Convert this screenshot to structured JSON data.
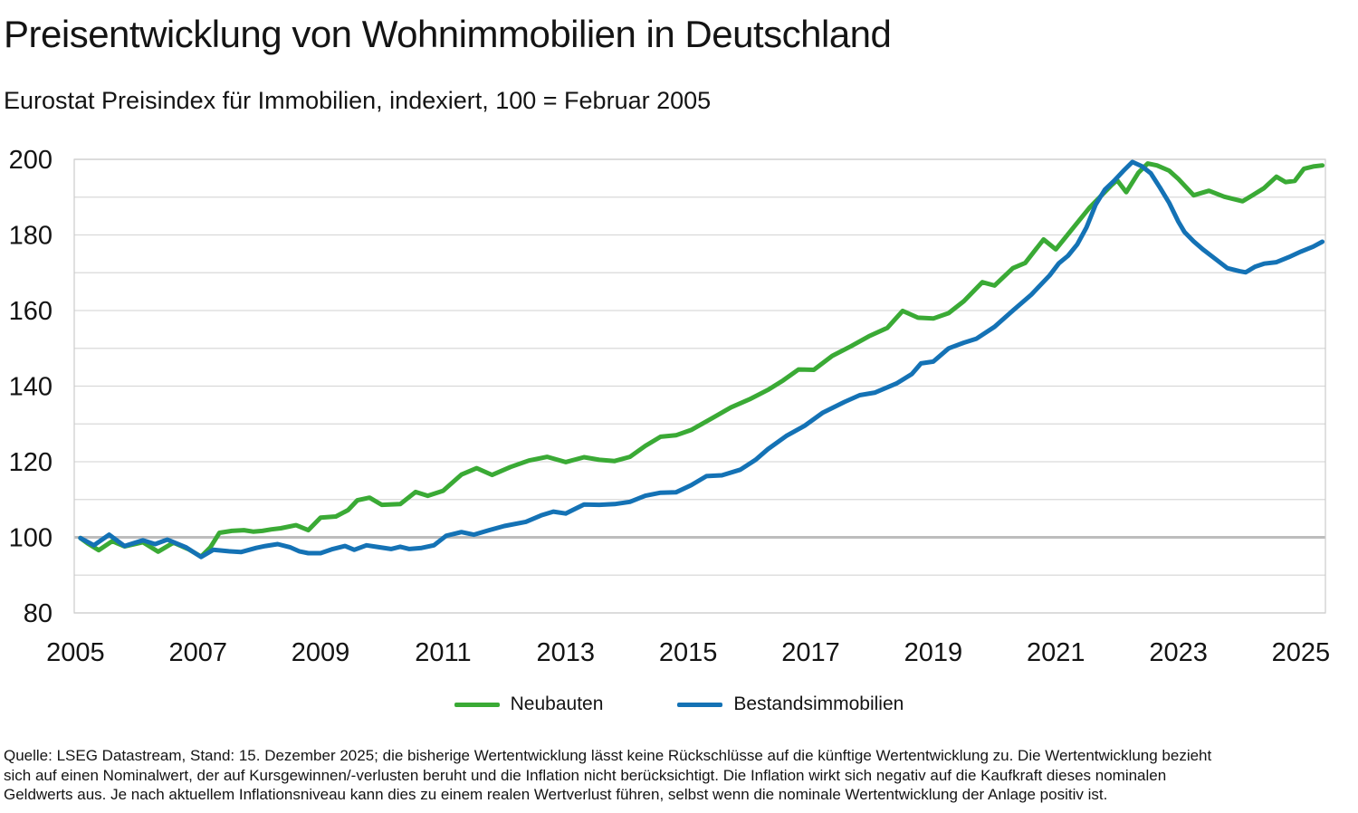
{
  "chart_data": {
    "type": "line",
    "title": "Preisentwicklung von Wohnimmobilien in Deutschland",
    "subtitle": "Eurostat Preisindex für Immobilien, indexiert, 100 = Februar 2005",
    "ylim": [
      80,
      200
    ],
    "yticks": [
      80,
      100,
      120,
      140,
      160,
      180,
      200
    ],
    "grid_step": 10,
    "baseline_value": 100,
    "xlim": [
      2004.98,
      2025.4
    ],
    "xticks": [
      2005,
      2007,
      2009,
      2011,
      2013,
      2015,
      2017,
      2019,
      2021,
      2023,
      2025
    ],
    "grid_color": "#d9d9d9",
    "baseline_color": "#bdbdbd",
    "border_color": "#cccccc",
    "legend_position": "bottom-center",
    "series": [
      {
        "name": "Neubauten",
        "color": "#3aaa35",
        "points": [
          [
            2005.08,
            99.8
          ],
          [
            2005.2,
            98.4
          ],
          [
            2005.38,
            96.6
          ],
          [
            2005.6,
            99.0
          ],
          [
            2005.8,
            97.6
          ],
          [
            2006.1,
            98.7
          ],
          [
            2006.35,
            96.2
          ],
          [
            2006.6,
            98.6
          ],
          [
            2006.85,
            96.8
          ],
          [
            2007.05,
            94.9
          ],
          [
            2007.2,
            97.3
          ],
          [
            2007.35,
            101.2
          ],
          [
            2007.55,
            101.7
          ],
          [
            2007.75,
            101.9
          ],
          [
            2007.9,
            101.5
          ],
          [
            2008.05,
            101.7
          ],
          [
            2008.2,
            102.1
          ],
          [
            2008.35,
            102.4
          ],
          [
            2008.6,
            103.2
          ],
          [
            2008.8,
            101.9
          ],
          [
            2009.0,
            105.2
          ],
          [
            2009.25,
            105.5
          ],
          [
            2009.45,
            107.2
          ],
          [
            2009.6,
            109.8
          ],
          [
            2009.8,
            110.5
          ],
          [
            2010.0,
            108.6
          ],
          [
            2010.3,
            108.8
          ],
          [
            2010.55,
            112.0
          ],
          [
            2010.75,
            111.0
          ],
          [
            2011.0,
            112.3
          ],
          [
            2011.3,
            116.6
          ],
          [
            2011.55,
            118.3
          ],
          [
            2011.8,
            116.5
          ],
          [
            2012.1,
            118.6
          ],
          [
            2012.4,
            120.3
          ],
          [
            2012.7,
            121.3
          ],
          [
            2013.0,
            119.9
          ],
          [
            2013.3,
            121.2
          ],
          [
            2013.55,
            120.5
          ],
          [
            2013.8,
            120.2
          ],
          [
            2014.05,
            121.3
          ],
          [
            2014.3,
            124.2
          ],
          [
            2014.55,
            126.6
          ],
          [
            2014.8,
            127.0
          ],
          [
            2015.05,
            128.4
          ],
          [
            2015.4,
            131.6
          ],
          [
            2015.7,
            134.4
          ],
          [
            2016.0,
            136.5
          ],
          [
            2016.3,
            139.0
          ],
          [
            2016.55,
            141.5
          ],
          [
            2016.8,
            144.4
          ],
          [
            2017.05,
            144.3
          ],
          [
            2017.35,
            148.0
          ],
          [
            2017.65,
            150.5
          ],
          [
            2017.95,
            153.2
          ],
          [
            2018.25,
            155.4
          ],
          [
            2018.5,
            159.9
          ],
          [
            2018.75,
            158.1
          ],
          [
            2019.0,
            157.9
          ],
          [
            2019.25,
            159.3
          ],
          [
            2019.5,
            162.5
          ],
          [
            2019.8,
            167.5
          ],
          [
            2020.0,
            166.6
          ],
          [
            2020.3,
            171.2
          ],
          [
            2020.5,
            172.6
          ],
          [
            2020.8,
            178.8
          ],
          [
            2021.0,
            176.2
          ],
          [
            2021.3,
            182.2
          ],
          [
            2021.55,
            187.2
          ],
          [
            2021.9,
            193.0
          ],
          [
            2022.0,
            194.5
          ],
          [
            2022.15,
            191.3
          ],
          [
            2022.35,
            196.5
          ],
          [
            2022.5,
            198.9
          ],
          [
            2022.65,
            198.4
          ],
          [
            2022.85,
            197.0
          ],
          [
            2023.0,
            194.8
          ],
          [
            2023.25,
            190.5
          ],
          [
            2023.5,
            191.7
          ],
          [
            2023.75,
            190.1
          ],
          [
            2024.05,
            188.9
          ],
          [
            2024.2,
            190.4
          ],
          [
            2024.4,
            192.4
          ],
          [
            2024.6,
            195.4
          ],
          [
            2024.75,
            194.0
          ],
          [
            2024.9,
            194.3
          ],
          [
            2025.05,
            197.5
          ],
          [
            2025.2,
            198.1
          ],
          [
            2025.35,
            198.4
          ]
        ]
      },
      {
        "name": "Bestandsimmobilien",
        "color": "#1472b5",
        "points": [
          [
            2005.08,
            99.8
          ],
          [
            2005.3,
            97.9
          ],
          [
            2005.55,
            100.7
          ],
          [
            2005.8,
            97.7
          ],
          [
            2006.1,
            99.2
          ],
          [
            2006.3,
            98.2
          ],
          [
            2006.5,
            99.4
          ],
          [
            2006.8,
            97.4
          ],
          [
            2007.05,
            94.8
          ],
          [
            2007.25,
            96.7
          ],
          [
            2007.5,
            96.3
          ],
          [
            2007.7,
            96.1
          ],
          [
            2007.95,
            97.2
          ],
          [
            2008.1,
            97.7
          ],
          [
            2008.3,
            98.2
          ],
          [
            2008.5,
            97.4
          ],
          [
            2008.65,
            96.3
          ],
          [
            2008.8,
            95.8
          ],
          [
            2009.0,
            95.8
          ],
          [
            2009.2,
            96.9
          ],
          [
            2009.4,
            97.7
          ],
          [
            2009.55,
            96.7
          ],
          [
            2009.75,
            97.9
          ],
          [
            2009.95,
            97.4
          ],
          [
            2010.15,
            96.9
          ],
          [
            2010.3,
            97.5
          ],
          [
            2010.45,
            96.9
          ],
          [
            2010.65,
            97.2
          ],
          [
            2010.85,
            97.9
          ],
          [
            2011.05,
            100.4
          ],
          [
            2011.3,
            101.4
          ],
          [
            2011.5,
            100.7
          ],
          [
            2011.75,
            101.9
          ],
          [
            2012.0,
            103.0
          ],
          [
            2012.35,
            104.1
          ],
          [
            2012.6,
            105.8
          ],
          [
            2012.8,
            106.8
          ],
          [
            2013.0,
            106.3
          ],
          [
            2013.3,
            108.7
          ],
          [
            2013.55,
            108.6
          ],
          [
            2013.8,
            108.8
          ],
          [
            2014.05,
            109.4
          ],
          [
            2014.3,
            111.0
          ],
          [
            2014.55,
            111.8
          ],
          [
            2014.8,
            111.9
          ],
          [
            2015.05,
            113.8
          ],
          [
            2015.3,
            116.2
          ],
          [
            2015.55,
            116.4
          ],
          [
            2015.85,
            117.9
          ],
          [
            2016.1,
            120.5
          ],
          [
            2016.3,
            123.3
          ],
          [
            2016.6,
            126.8
          ],
          [
            2016.9,
            129.5
          ],
          [
            2017.2,
            133.0
          ],
          [
            2017.55,
            135.8
          ],
          [
            2017.8,
            137.6
          ],
          [
            2018.05,
            138.3
          ],
          [
            2018.4,
            140.7
          ],
          [
            2018.65,
            143.2
          ],
          [
            2018.8,
            146.0
          ],
          [
            2019.0,
            146.5
          ],
          [
            2019.25,
            150.0
          ],
          [
            2019.5,
            151.5
          ],
          [
            2019.7,
            152.5
          ],
          [
            2020.0,
            155.7
          ],
          [
            2020.3,
            160.0
          ],
          [
            2020.6,
            164.2
          ],
          [
            2020.9,
            169.3
          ],
          [
            2021.05,
            172.5
          ],
          [
            2021.2,
            174.5
          ],
          [
            2021.35,
            177.5
          ],
          [
            2021.5,
            182.0
          ],
          [
            2021.65,
            188.0
          ],
          [
            2021.8,
            192.0
          ],
          [
            2021.95,
            194.3
          ],
          [
            2022.1,
            196.9
          ],
          [
            2022.25,
            199.3
          ],
          [
            2022.4,
            198.2
          ],
          [
            2022.55,
            196.3
          ],
          [
            2022.7,
            192.5
          ],
          [
            2022.85,
            188.5
          ],
          [
            2023.0,
            183.5
          ],
          [
            2023.1,
            180.8
          ],
          [
            2023.25,
            178.3
          ],
          [
            2023.4,
            176.2
          ],
          [
            2023.6,
            173.7
          ],
          [
            2023.8,
            171.2
          ],
          [
            2024.0,
            170.4
          ],
          [
            2024.1,
            170.1
          ],
          [
            2024.25,
            171.6
          ],
          [
            2024.4,
            172.4
          ],
          [
            2024.6,
            172.8
          ],
          [
            2024.8,
            174.1
          ],
          [
            2025.0,
            175.6
          ],
          [
            2025.2,
            176.9
          ],
          [
            2025.35,
            178.2
          ]
        ]
      }
    ]
  },
  "footer": {
    "lines": [
      "Quelle: LSEG Datastream, Stand: 15. Dezember 2025; die bisherige Wertentwicklung lässt keine Rückschlüsse auf die künftige Wertentwicklung zu. Die Wertentwicklung bezieht",
      "sich auf einen Nominalwert, der auf Kursgewinnen/-verlusten beruht und die Inflation nicht berücksichtigt. Die Inflation wirkt sich negativ auf die Kaufkraft dieses nominalen",
      "Geldwerts aus. Je nach aktuellem Inflationsniveau kann dies zu einem realen Wertverlust führen, selbst wenn die nominale Wertentwicklung der Anlage positiv ist."
    ]
  }
}
